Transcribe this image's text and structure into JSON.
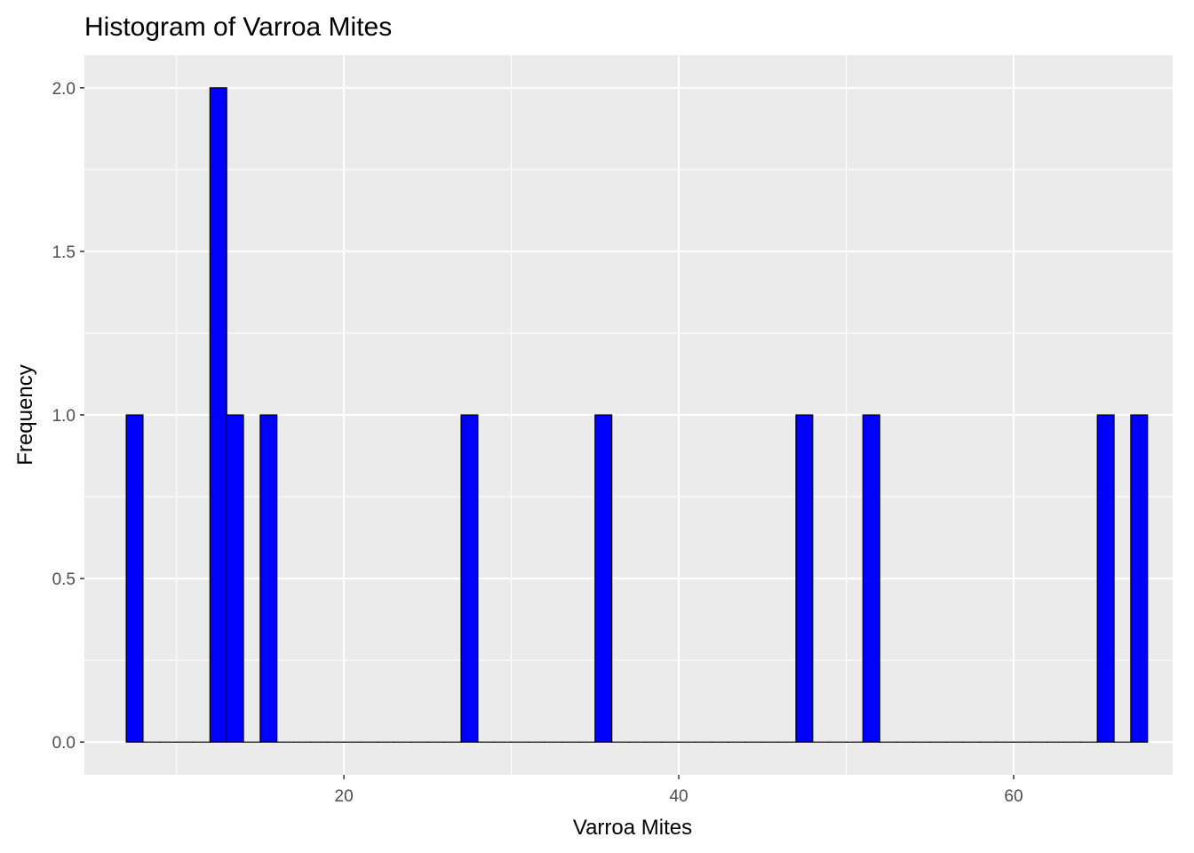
{
  "chart_data": {
    "type": "bar",
    "title": "Histogram of Varroa Mites",
    "xlabel": "Varroa Mites",
    "ylabel": "Frequency",
    "x_bin_starts": [
      7,
      8,
      9,
      10,
      11,
      12,
      13,
      14,
      15,
      16,
      17,
      18,
      19,
      20,
      21,
      22,
      23,
      24,
      25,
      26,
      27,
      28,
      29,
      30,
      31,
      32,
      33,
      34,
      35,
      36,
      37,
      38,
      39,
      40,
      41,
      42,
      43,
      44,
      45,
      46,
      47,
      48,
      49,
      50,
      51,
      52,
      53,
      54,
      55,
      56,
      57,
      58,
      59,
      60,
      61,
      62,
      63,
      64,
      65,
      66,
      67
    ],
    "values": [
      1,
      0,
      0,
      0,
      0,
      2,
      1,
      0,
      1,
      0,
      0,
      0,
      0,
      0,
      0,
      0,
      0,
      0,
      0,
      0,
      1,
      0,
      0,
      0,
      0,
      0,
      0,
      0,
      1,
      0,
      0,
      0,
      0,
      0,
      0,
      0,
      0,
      0,
      0,
      0,
      1,
      0,
      0,
      0,
      1,
      0,
      0,
      0,
      0,
      0,
      0,
      0,
      0,
      0,
      0,
      0,
      0,
      0,
      1,
      0,
      1
    ],
    "xlim": [
      4.5,
      69.5
    ],
    "ylim": [
      -0.1,
      2.1
    ],
    "x_ticks": [
      20,
      40,
      60
    ],
    "x_tick_labels": [
      "20",
      "40",
      "60"
    ],
    "x_minor_ticks": [
      10,
      30,
      50
    ],
    "y_ticks": [
      0,
      0.5,
      1,
      1.5,
      2
    ],
    "y_tick_labels": [
      "0.0",
      "0.5",
      "1.0",
      "1.5",
      "2.0"
    ],
    "y_minor_ticks": [
      0.25,
      0.75,
      1.25,
      1.75
    ],
    "grid": true,
    "colors": {
      "bar_fill": "#0000ff",
      "bar_outline": "#000000",
      "panel_background": "#ebebeb",
      "grid": "#ffffff"
    }
  }
}
